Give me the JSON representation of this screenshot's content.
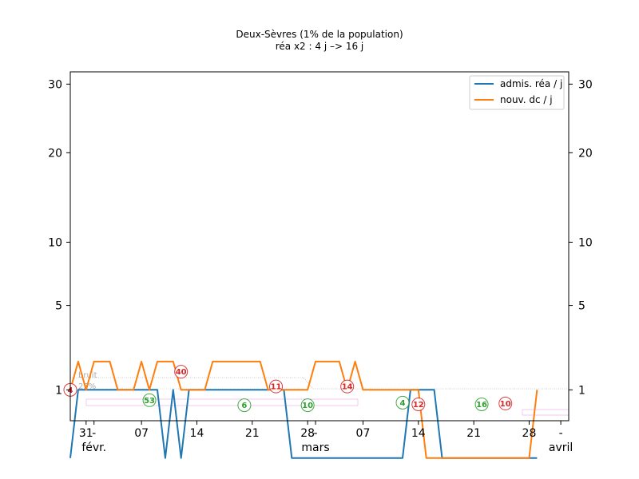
{
  "chart_data": {
    "type": "line",
    "title": "Deux-Sèvres (1% de la population)",
    "subtitle": "réa x2 : 4 j –> 16 j",
    "xlabel": "",
    "ylabel": "",
    "x_start": "2021-01-29",
    "x_end": "2021-04-02",
    "ylim": [
      0.3,
      32
    ],
    "y_scale": "square-root",
    "yticks": [
      1,
      5,
      10,
      20,
      30
    ],
    "ytick_labels": [
      "1",
      "5",
      "10",
      "20",
      "30"
    ],
    "xticks": [
      {
        "date": "2021-01-31",
        "label": "31"
      },
      {
        "date": "2021-02-01",
        "label": "-"
      },
      {
        "date": "2021-02-07",
        "label": "07"
      },
      {
        "date": "2021-02-14",
        "label": "14"
      },
      {
        "date": "2021-02-21",
        "label": "21"
      },
      {
        "date": "2021-02-28",
        "label": "28"
      },
      {
        "date": "2021-03-01",
        "label": "-"
      },
      {
        "date": "2021-03-07",
        "label": "07"
      },
      {
        "date": "2021-03-14",
        "label": "14"
      },
      {
        "date": "2021-03-21",
        "label": "21"
      },
      {
        "date": "2021-03-28",
        "label": "28"
      },
      {
        "date": "2021-04-01",
        "label": "-"
      }
    ],
    "month_labels": [
      {
        "date": "2021-02-01",
        "label": "févr."
      },
      {
        "date": "2021-03-01",
        "label": "mars"
      },
      {
        "date": "2021-04-01",
        "label": "avril"
      }
    ],
    "grid": false,
    "legend_position": "top-right",
    "series": [
      {
        "name": "admis. réa / j",
        "color": "#1f77b4",
        "x": [
          "2021-01-29",
          "2021-01-30",
          "2021-01-31",
          "2021-02-01",
          "2021-02-02",
          "2021-02-03",
          "2021-02-04",
          "2021-02-05",
          "2021-02-06",
          "2021-02-07",
          "2021-02-08",
          "2021-02-09",
          "2021-02-10",
          "2021-02-11",
          "2021-02-12",
          "2021-02-13",
          "2021-02-14",
          "2021-02-15",
          "2021-02-16",
          "2021-02-17",
          "2021-02-18",
          "2021-02-19",
          "2021-02-20",
          "2021-02-21",
          "2021-02-22",
          "2021-02-23",
          "2021-02-24",
          "2021-02-25",
          "2021-02-26",
          "2021-02-27",
          "2021-02-28",
          "2021-03-01",
          "2021-03-02",
          "2021-03-03",
          "2021-03-04",
          "2021-03-05",
          "2021-03-06",
          "2021-03-07",
          "2021-03-08",
          "2021-03-09",
          "2021-03-10",
          "2021-03-11",
          "2021-03-12",
          "2021-03-13",
          "2021-03-14",
          "2021-03-15",
          "2021-03-16",
          "2021-03-17",
          "2021-03-18",
          "2021-03-19",
          "2021-03-20",
          "2021-03-21",
          "2021-03-22",
          "2021-03-23",
          "2021-03-24",
          "2021-03-25",
          "2021-03-26",
          "2021-03-27",
          "2021-03-28",
          "2021-03-29"
        ],
        "values": [
          0,
          1,
          1,
          1,
          1,
          1,
          1,
          1,
          1,
          1,
          1,
          1,
          0,
          1,
          0,
          1,
          1,
          1,
          1,
          1,
          1,
          1,
          1,
          1,
          1,
          1,
          1,
          1,
          0,
          0,
          0,
          0,
          0,
          0,
          0,
          0,
          0,
          0,
          0,
          0,
          0,
          0,
          0,
          1,
          1,
          1,
          1,
          0,
          0,
          0,
          0,
          0,
          0,
          0,
          0,
          0,
          0,
          0,
          0,
          0
        ]
      },
      {
        "name": "nouv. dc / j",
        "color": "#ff7f0e",
        "x": [
          "2021-01-29",
          "2021-01-30",
          "2021-01-31",
          "2021-02-01",
          "2021-02-02",
          "2021-02-03",
          "2021-02-04",
          "2021-02-05",
          "2021-02-06",
          "2021-02-07",
          "2021-02-08",
          "2021-02-09",
          "2021-02-10",
          "2021-02-11",
          "2021-02-12",
          "2021-02-13",
          "2021-02-14",
          "2021-02-15",
          "2021-02-16",
          "2021-02-17",
          "2021-02-18",
          "2021-02-19",
          "2021-02-20",
          "2021-02-21",
          "2021-02-22",
          "2021-02-23",
          "2021-02-24",
          "2021-02-25",
          "2021-02-26",
          "2021-02-27",
          "2021-02-28",
          "2021-03-01",
          "2021-03-02",
          "2021-03-03",
          "2021-03-04",
          "2021-03-05",
          "2021-03-06",
          "2021-03-07",
          "2021-03-08",
          "2021-03-09",
          "2021-03-10",
          "2021-03-11",
          "2021-03-12",
          "2021-03-13",
          "2021-03-14",
          "2021-03-15",
          "2021-03-16",
          "2021-03-17",
          "2021-03-18",
          "2021-03-19",
          "2021-03-20",
          "2021-03-21",
          "2021-03-22",
          "2021-03-23",
          "2021-03-24",
          "2021-03-25",
          "2021-03-26",
          "2021-03-27",
          "2021-03-28",
          "2021-03-29"
        ],
        "values": [
          1,
          2,
          1,
          2,
          2,
          2,
          1,
          1,
          1,
          2,
          1,
          2,
          2,
          2,
          1,
          1,
          1,
          1,
          2,
          2,
          2,
          2,
          2,
          2,
          2,
          1,
          1,
          1,
          1,
          1,
          1,
          2,
          2,
          2,
          2,
          1,
          2,
          1,
          1,
          1,
          1,
          1,
          1,
          1,
          1,
          0,
          0,
          0,
          0,
          0,
          0,
          0,
          0,
          0,
          0,
          0,
          0,
          0,
          0,
          1
        ]
      }
    ],
    "annotations": [
      {
        "date": "2021-01-29",
        "value": 1.0,
        "label": "4",
        "color": "#d62728"
      },
      {
        "date": "2021-02-08",
        "value": 0.72,
        "label": "53",
        "color": "#2ca02c"
      },
      {
        "date": "2021-02-12",
        "value": 1.6,
        "label": "40",
        "color": "#d62728"
      },
      {
        "date": "2021-02-20",
        "value": 0.6,
        "label": "6",
        "color": "#2ca02c"
      },
      {
        "date": "2021-02-24",
        "value": 1.1,
        "label": "11",
        "color": "#d62728"
      },
      {
        "date": "2021-02-28",
        "value": 0.6,
        "label": "10",
        "color": "#2ca02c"
      },
      {
        "date": "2021-03-05",
        "value": 1.1,
        "label": "14",
        "color": "#d62728"
      },
      {
        "date": "2021-03-12",
        "value": 0.66,
        "label": "4",
        "color": "#2ca02c"
      },
      {
        "date": "2021-03-14",
        "value": 0.62,
        "label": "12",
        "color": "#d62728"
      },
      {
        "date": "2021-03-22",
        "value": 0.62,
        "label": "16",
        "color": "#2ca02c"
      },
      {
        "date": "2021-03-25",
        "value": 0.64,
        "label": "10",
        "color": "#d62728"
      }
    ],
    "noise_labels": [
      "bruit",
      "25%"
    ]
  }
}
